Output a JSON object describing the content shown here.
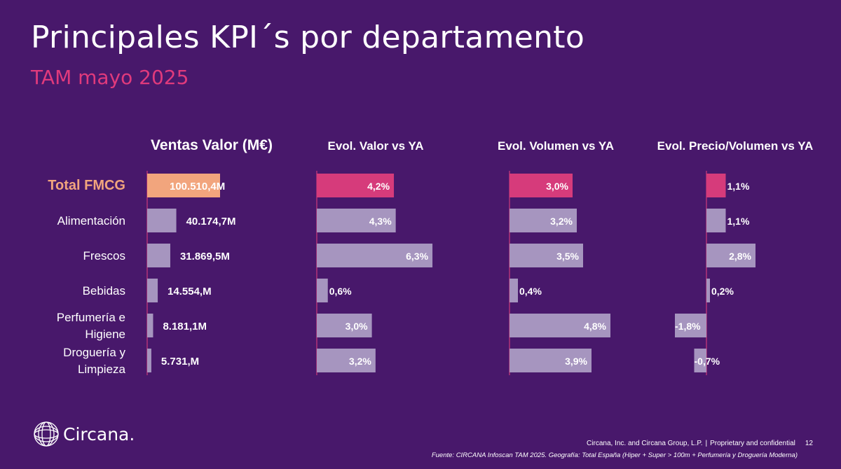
{
  "slide": {
    "title": "Principales KPI´s por departamento",
    "subtitle": "TAM mayo 2025"
  },
  "brand": {
    "name": "Circana.",
    "icon": "circana-globe-icon"
  },
  "footer": {
    "company": "Circana, Inc. and Circana Group, L.P.",
    "separator": "|",
    "confidential": "Proprietary and confidential",
    "page": "12",
    "source": "Fuente: CIRCANA Infoscan TAM 2025. Geografía: Total España (Hiper + Super > 100m + Perfumería y Droguería Moderna)"
  },
  "colors": {
    "background": "#48186b",
    "highlight_total_sales": "#f2a57d",
    "highlight_total_evol": "#d63b7b",
    "bar_default": "#a695bf",
    "subtitle": "#e03a7c",
    "total_label": "#f2a57d"
  },
  "chart_data": [
    {
      "type": "bar",
      "orientation": "horizontal",
      "title": "Ventas Valor (M€)",
      "categories": [
        "Total FMCG",
        "Alimentación",
        "Frescos",
        "Bebidas",
        "Perfumería e Higiene",
        "Droguería y Limpieza"
      ],
      "category_lines": [
        [
          "Total FMCG"
        ],
        [
          "Alimentación"
        ],
        [
          "Frescos"
        ],
        [
          "Bebidas"
        ],
        [
          "Perfumería e",
          "Higiene"
        ],
        [
          "Droguería y",
          "Limpieza"
        ]
      ],
      "values": [
        100510.4,
        40174.7,
        31869.5,
        14554,
        8181.1,
        5731
      ],
      "labels": [
        "100.510,4M",
        "40.174,7M",
        "31.869,5M",
        "14.554,M",
        "8.181,1M",
        "5.731,M"
      ]
    },
    {
      "type": "bar",
      "orientation": "horizontal",
      "title": "Evol. Valor vs YA",
      "categories": [
        "Total FMCG",
        "Alimentación",
        "Frescos",
        "Bebidas",
        "Perfumería e Higiene",
        "Droguería y Limpieza"
      ],
      "values": [
        4.2,
        4.3,
        6.3,
        0.6,
        3.0,
        3.2
      ],
      "labels": [
        "4,2%",
        "4,3%",
        "6,3%",
        "0,6%",
        "3,0%",
        "3,2%"
      ]
    },
    {
      "type": "bar",
      "orientation": "horizontal",
      "title": "Evol. Volumen vs YA",
      "categories": [
        "Total FMCG",
        "Alimentación",
        "Frescos",
        "Bebidas",
        "Perfumería e Higiene",
        "Droguería y Limpieza"
      ],
      "values": [
        3.0,
        3.2,
        3.5,
        0.4,
        4.8,
        3.9
      ],
      "labels": [
        "3,0%",
        "3,2%",
        "3,5%",
        "0,4%",
        "4,8%",
        "3,9%"
      ]
    },
    {
      "type": "bar",
      "orientation": "horizontal",
      "title": "Evol. Precio/Volumen vs YA",
      "categories": [
        "Total FMCG",
        "Alimentación",
        "Frescos",
        "Bebidas",
        "Perfumería e Higiene",
        "Droguería y Limpieza"
      ],
      "values": [
        1.1,
        1.1,
        2.8,
        0.2,
        -1.8,
        -0.7
      ],
      "labels": [
        "1,1%",
        "1,1%",
        "2,8%",
        "0,2%",
        "-1,8%",
        "-0,7%"
      ]
    }
  ]
}
